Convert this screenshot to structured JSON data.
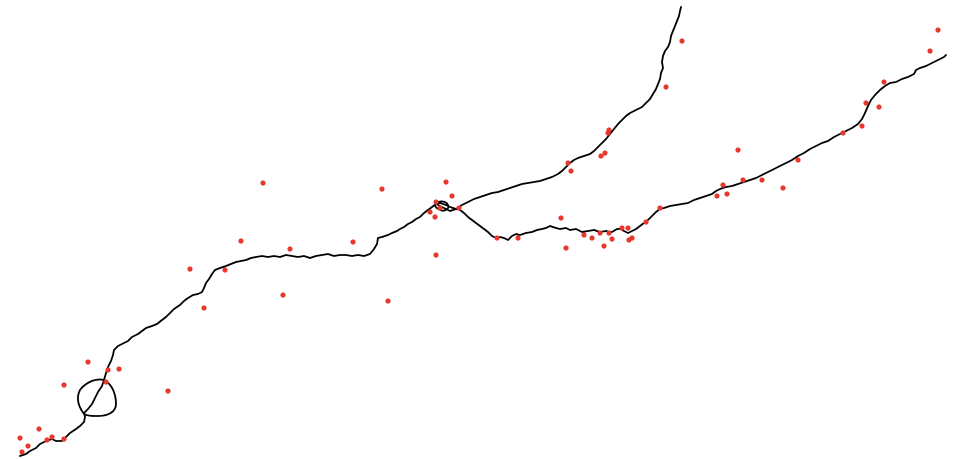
{
  "map": {
    "route_color": "#000000",
    "point_color": "#e8382c",
    "background": "#ffffff"
  }
}
